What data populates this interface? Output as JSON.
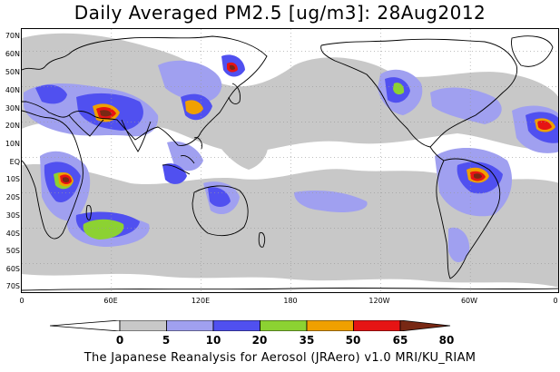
{
  "title": "Daily Averaged PM2.5 [ug/m3]: 28Aug2012",
  "footer": "The Japanese Reanalysis for Aerosol (JRAero) v1.0 MRI/KU_RIAM",
  "lat_labels": [
    "70N",
    "60N",
    "50N",
    "40N",
    "30N",
    "20N",
    "10N",
    "EQ",
    "10S",
    "20S",
    "30S",
    "40S",
    "50S",
    "60S",
    "70S"
  ],
  "lon_labels": [
    "0",
    "60E",
    "120E",
    "180",
    "120W",
    "60W",
    "0"
  ],
  "colorbar": {
    "labels": [
      "0",
      "5",
      "10",
      "20",
      "35",
      "50",
      "65",
      "80"
    ],
    "colors": [
      "#ffffff",
      "#c8c8c8",
      "#a0a0f0",
      "#5050f0",
      "#8cd232",
      "#f0a000",
      "#e61414",
      "#782814"
    ]
  }
}
